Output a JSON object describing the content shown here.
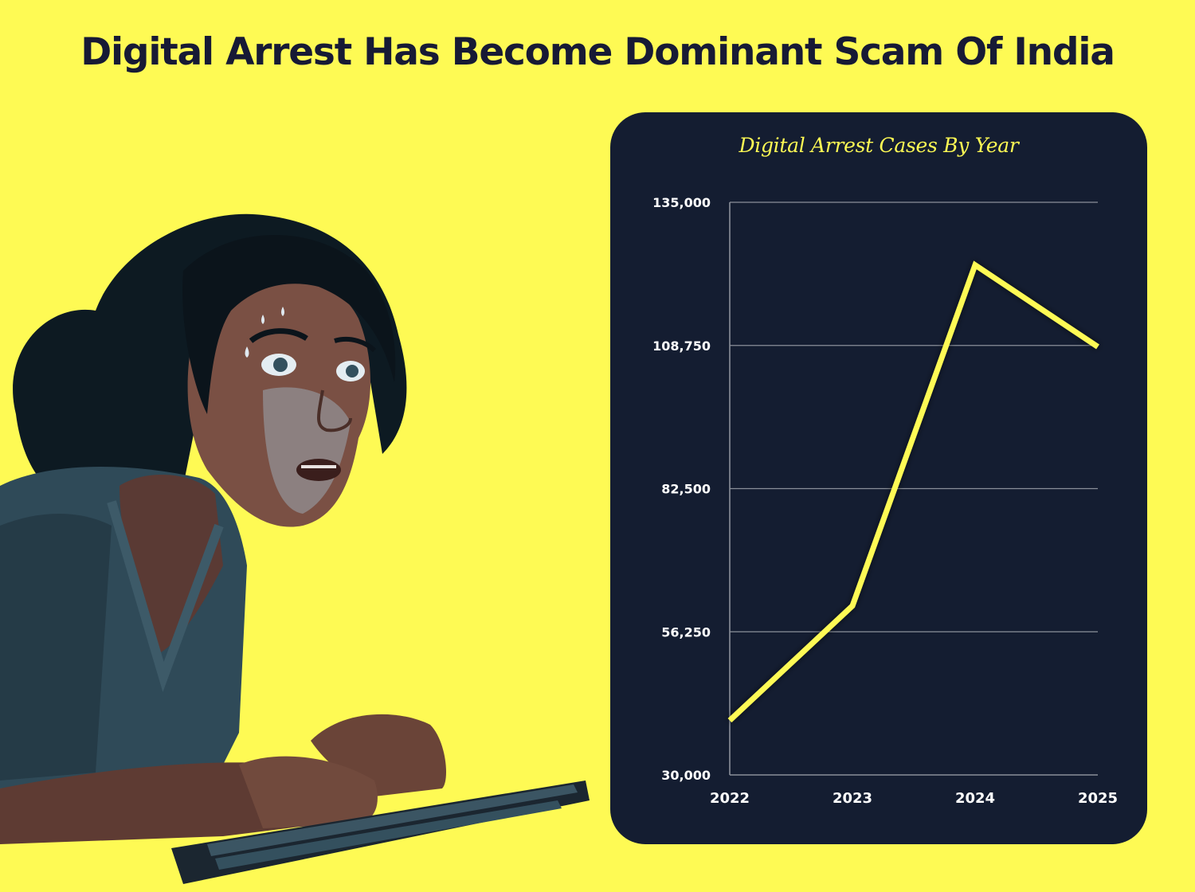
{
  "headline": "Digital Arrest Has Become Dominant Scam Of India",
  "illustration": {
    "subject": "worried-woman-typing-keyboard"
  },
  "colors": {
    "background": "#fefa54",
    "headline": "#171a35",
    "card": "#141d31",
    "line": "#fefa54",
    "grid": "#8a8f99",
    "tick_text": "#ffffff"
  },
  "chart_data": {
    "type": "line",
    "title": "Digital Arrest Cases By Year",
    "xlabel": "",
    "ylabel": "",
    "categories": [
      "2022",
      "2023",
      "2024",
      "2025"
    ],
    "series": [
      {
        "name": "Digital Arrest Cases",
        "values": [
          40000,
          61000,
          123500,
          108500
        ]
      }
    ],
    "ylim": [
      30000,
      135000
    ],
    "yticks": [
      30000,
      56250,
      82500,
      108750,
      135000
    ],
    "ytick_labels": [
      "30,000",
      "56,250",
      "82,500",
      "108,750",
      "135,000"
    ],
    "grid": true,
    "legend": "none"
  }
}
